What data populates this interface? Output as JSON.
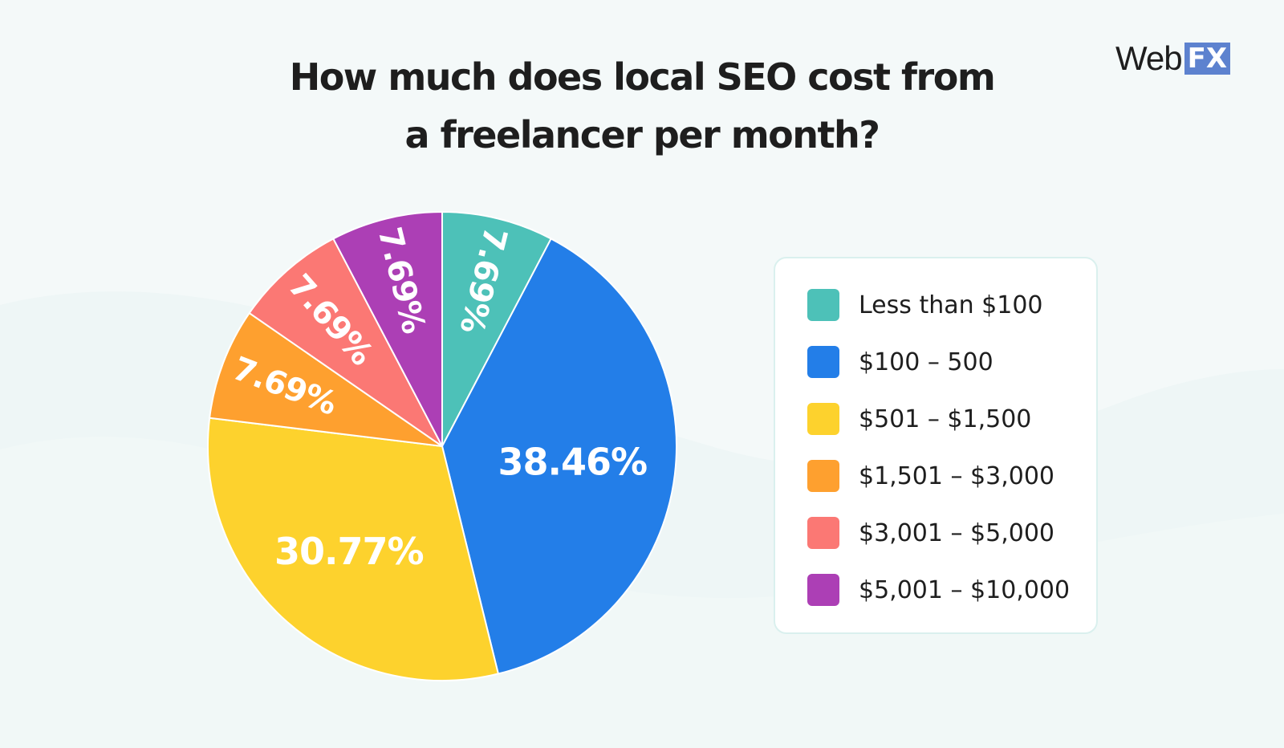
{
  "brand": {
    "web": "Web",
    "fx": "FX"
  },
  "colors": {
    "background": "#f4f9f9",
    "title": "#1e1e1e",
    "logo_fx_bg": "#5d82cf"
  },
  "chart_data": {
    "type": "pie",
    "title": [
      "How much does local SEO cost from",
      "a freelancer per month?"
    ],
    "categories": [
      "Less than $100",
      "$100 – 500",
      "$501 – $1,500",
      "$1,501 – $3,000",
      "$3,001 – $5,000",
      "$5,001 – $10,000"
    ],
    "values": [
      7.69,
      38.46,
      30.77,
      7.69,
      7.69,
      7.69
    ],
    "data_labels": [
      "7.69%",
      "38.46%",
      "30.77%",
      "7.69%",
      "7.69%",
      "7.69%"
    ],
    "colors": [
      "#4dc1b8",
      "#237ee8",
      "#fdd22d",
      "#fea02f",
      "#fb7874",
      "#ac3fb5"
    ],
    "start_angle_deg": 0,
    "direction": "clockwise",
    "legend_position": "right"
  }
}
